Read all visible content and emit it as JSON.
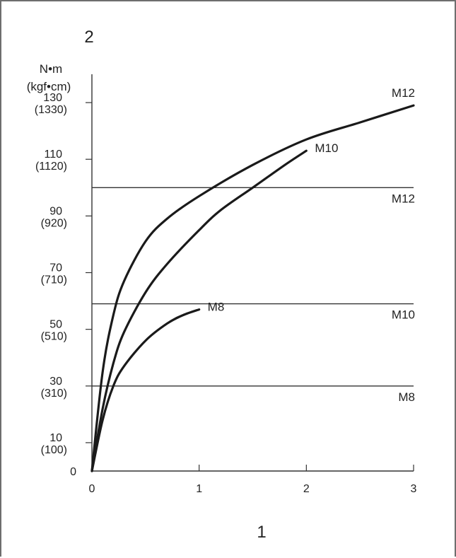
{
  "chart_data": {
    "type": "line",
    "panel_label": "2",
    "xlabel": "1",
    "ylabel": [
      "N•m",
      "(kgf•cm)"
    ],
    "xlim": [
      0,
      3
    ],
    "ylim": [
      0,
      140
    ],
    "x_ticks": [
      "0",
      "1",
      "2",
      "3"
    ],
    "y_ticks": [
      {
        "value": 0,
        "label": "0",
        "sublabel": ""
      },
      {
        "value": 10,
        "label": "10",
        "sublabel": "(100)"
      },
      {
        "value": 30,
        "label": "30",
        "sublabel": "(310)"
      },
      {
        "value": 50,
        "label": "50",
        "sublabel": "(510)"
      },
      {
        "value": 70,
        "label": "70",
        "sublabel": "(710)"
      },
      {
        "value": 90,
        "label": "90",
        "sublabel": "(920)"
      },
      {
        "value": 110,
        "label": "110",
        "sublabel": "(1120)"
      },
      {
        "value": 130,
        "label": "130",
        "sublabel": "(1330)"
      }
    ],
    "series": [
      {
        "name": "M12",
        "x": [
          0,
          0.1,
          0.2,
          0.3,
          0.5,
          0.7,
          1.0,
          1.5,
          2.0,
          2.5,
          3.0
        ],
        "y": [
          0,
          35,
          55,
          67,
          81,
          89,
          97,
          108,
          117,
          123,
          129
        ]
      },
      {
        "name": "M10",
        "x": [
          0,
          0.1,
          0.2,
          0.3,
          0.5,
          0.7,
          1.0,
          1.2,
          1.5,
          1.8,
          2.0
        ],
        "y": [
          0,
          22,
          38,
          49,
          63,
          73,
          85,
          92,
          100,
          108,
          113
        ]
      },
      {
        "name": "M8",
        "x": [
          0,
          0.1,
          0.2,
          0.3,
          0.5,
          0.7,
          0.85,
          1.0
        ],
        "y": [
          0,
          18,
          30,
          37,
          46,
          52,
          55,
          57
        ]
      }
    ],
    "reference_lines": [
      {
        "name": "M12",
        "value": 100
      },
      {
        "name": "M10",
        "value": 59
      },
      {
        "name": "M8",
        "value": 30
      }
    ],
    "grid": false,
    "legend": "none"
  }
}
